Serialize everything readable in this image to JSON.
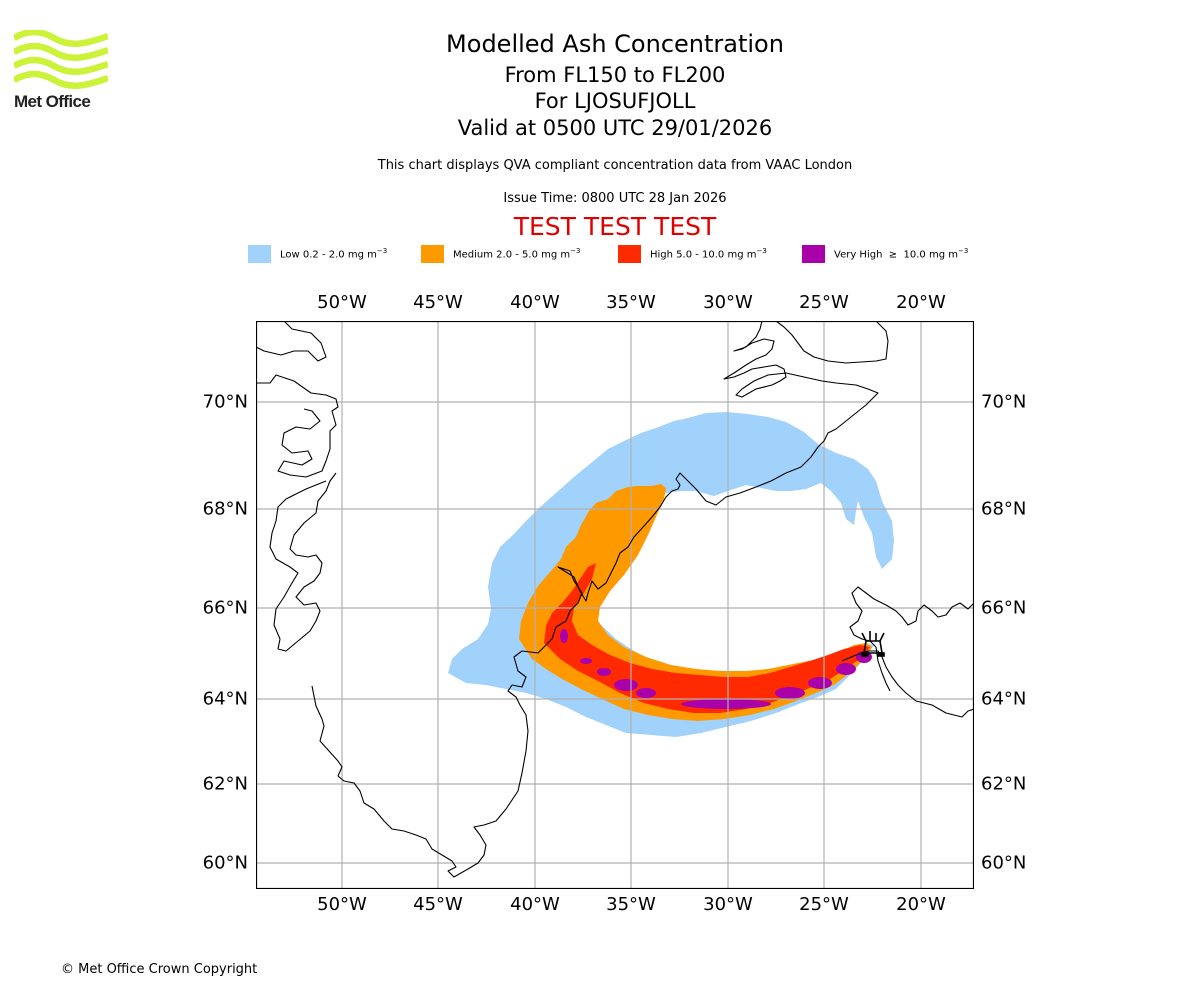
{
  "logo": {
    "text": "Met Office",
    "color": "#ccf23a"
  },
  "header": {
    "title": "Modelled Ash Concentration",
    "levels": "From FL150 to FL200",
    "volcano_line": "For LJOSUFJOLL",
    "valid_time": "Valid at 0500 UTC 29/01/2026",
    "description": "This chart displays QVA compliant concentration data from VAAC London",
    "issue_time": "Issue Time: 0800 UTC 28 Jan 2026",
    "test_banner": "TEST TEST TEST"
  },
  "legend": [
    {
      "label": "Low 0.2 - 2.0 mg m",
      "unit_sup": "−3",
      "color": "#a0d2fb"
    },
    {
      "label": "Medium 2.0 - 5.0 mg m",
      "unit_sup": "−3",
      "color": "#ff9900"
    },
    {
      "label": "High 5.0 - 10.0 mg m",
      "unit_sup": "−3",
      "color": "#ff2a00"
    },
    {
      "label": "Very High  ≥  10.0 mg m",
      "unit_sup": "−3",
      "color": "#aa00aa"
    }
  ],
  "axes": {
    "lon_ticks": [
      "50°W",
      "45°W",
      "40°W",
      "35°W",
      "30°W",
      "25°W",
      "20°W"
    ],
    "lat_ticks": [
      "70°N",
      "68°N",
      "66°N",
      "64°N",
      "62°N",
      "60°N"
    ]
  },
  "map": {
    "volcano_name": "LJOSUFJOLL",
    "volcano_icon": "volcano-icon",
    "coastline_color": "#000000",
    "grid_color": "#b0b0b0"
  },
  "footer": {
    "copyright": "© Met Office Crown Copyright"
  }
}
